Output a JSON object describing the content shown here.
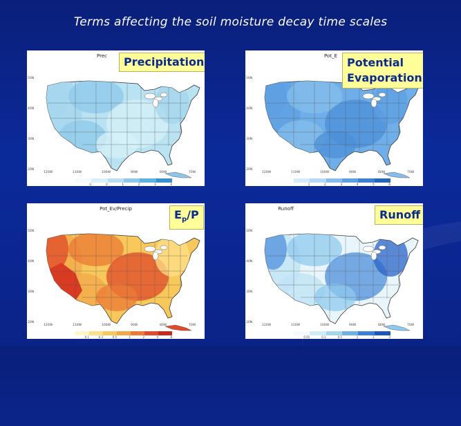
{
  "page": {
    "title": "Terms affecting the soil moisture decay time scales"
  },
  "panels": [
    {
      "id": "precip",
      "label": "Precipitation",
      "small_title": "Prec",
      "colors": [
        "#b9e2f2",
        "#a6d6ee",
        "#8ec8e9",
        "#d6f0f8"
      ],
      "colorbar": [
        "#f4fbff",
        "#d8f0fa",
        "#b8e0f3",
        "#8cc8ea",
        "#5fb0e0",
        "#3a90d0"
      ],
      "colorbar_ticks": [
        "-1",
        "0",
        "1",
        "2",
        "3",
        "4",
        "5"
      ]
    },
    {
      "id": "pot_evap",
      "label_line1": "Potential",
      "label_line2": "Evaporation",
      "small_title": "Pot_E",
      "colors": [
        "#6faee8",
        "#5d9fe2",
        "#86bdec",
        "#4c8fd8"
      ],
      "colorbar": [
        "#d6ebfa",
        "#b3d8f4",
        "#86bdec",
        "#5d9fe2",
        "#3c82d0",
        "#2466b8"
      ],
      "colorbar_ticks": [
        "1",
        "2",
        "3",
        "4",
        "5",
        "6",
        "7"
      ]
    },
    {
      "id": "ep_p",
      "label": "Ep/P",
      "small_title": "Pot_Ev/Precip",
      "colors": [
        "#f8c85a",
        "#f3a84a",
        "#ec7a36",
        "#e04a2a",
        "#fde08a"
      ],
      "colorbar": [
        "#fff6c8",
        "#fde08a",
        "#f8c85a",
        "#f3a84a",
        "#ec7a36",
        "#e04a2a",
        "#c8281e"
      ],
      "colorbar_ticks": [
        "0.1",
        "0.3",
        "0.5",
        "1",
        "2",
        "4",
        "8"
      ]
    },
    {
      "id": "runoff",
      "label": "Runoff",
      "small_title": "Runoff",
      "colors": [
        "#e8f6fc",
        "#bfe3f5",
        "#8fc9ee",
        "#4f8fdc",
        "#2a63c8"
      ],
      "colorbar": [
        "#f4fbff",
        "#d0ecf8",
        "#a6d6ee",
        "#6cb0e6",
        "#3a80d6",
        "#1f56b8"
      ],
      "colorbar_ticks": [
        "0.01",
        "0.1",
        "0.5",
        "1",
        "2",
        "3",
        "4"
      ]
    }
  ],
  "axes": {
    "lat_ticks": [
      "50N",
      "40N",
      "30N",
      "20N"
    ],
    "lon_ticks": [
      "120W",
      "110W",
      "100W",
      "90W",
      "80W",
      "70W"
    ]
  }
}
